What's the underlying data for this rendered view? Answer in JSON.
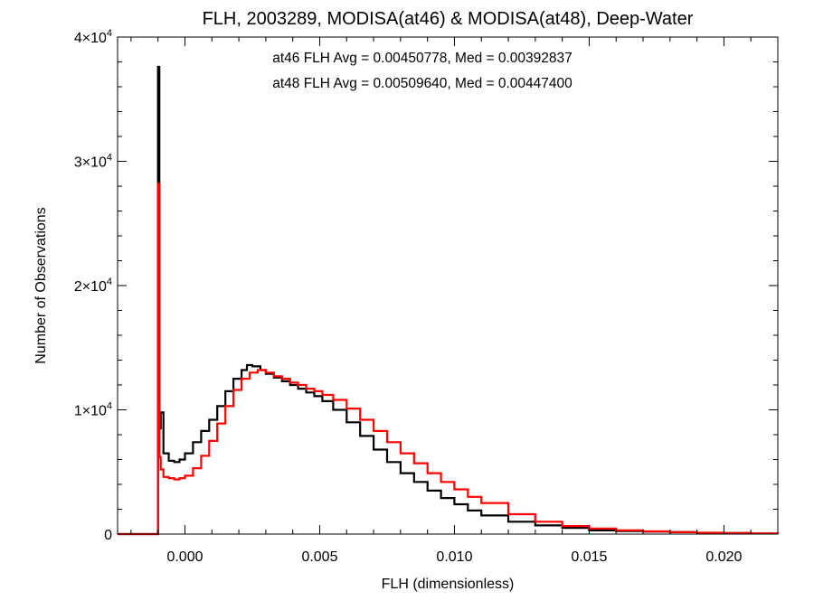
{
  "colors": {
    "series_at46": "#000000",
    "series_at48": "#ff0000"
  },
  "chart_data": {
    "type": "line",
    "title": "FLH, 2003289, MODISA(at46) & MODISA(at48), Deep-Water",
    "xlabel": "FLH (dimensionless)",
    "ylabel": "Number of Observations",
    "xlim": [
      -0.0025,
      0.022
    ],
    "ylim": [
      0,
      40000
    ],
    "x_ticks": [
      {
        "value": 0.0,
        "label": "0.000"
      },
      {
        "value": 0.005,
        "label": "0.005"
      },
      {
        "value": 0.01,
        "label": "0.010"
      },
      {
        "value": 0.015,
        "label": "0.015"
      },
      {
        "value": 0.02,
        "label": "0.020"
      }
    ],
    "y_ticks": [
      {
        "value": 0,
        "mantissa": "0",
        "exponent": ""
      },
      {
        "value": 10000,
        "mantissa": "1×10",
        "exponent": "4"
      },
      {
        "value": 20000,
        "mantissa": "2×10",
        "exponent": "4"
      },
      {
        "value": 30000,
        "mantissa": "3×10",
        "exponent": "4"
      },
      {
        "value": 40000,
        "mantissa": "4×10",
        "exponent": "4"
      }
    ],
    "annotations": [
      "at46 FLH Avg = 0.00450778, Med = 0.00392837",
      "at48 FLH Avg = 0.00509640, Med = 0.00447400"
    ],
    "series": [
      {
        "color": "#000000",
        "x": [
          -0.0025,
          -0.001,
          -0.00095,
          -0.0009,
          -0.0008,
          -0.0006,
          -0.0004,
          -0.0002,
          0.0,
          0.0003,
          0.0006,
          0.0009,
          0.0012,
          0.0015,
          0.0018,
          0.0021,
          0.0023,
          0.0025,
          0.0028,
          0.003,
          0.0033,
          0.0036,
          0.0039,
          0.0042,
          0.0045,
          0.0048,
          0.0051,
          0.0055,
          0.006,
          0.0065,
          0.007,
          0.0075,
          0.008,
          0.0085,
          0.009,
          0.0095,
          0.01,
          0.0105,
          0.011,
          0.012,
          0.013,
          0.014,
          0.015,
          0.016,
          0.017,
          0.018,
          0.019,
          0.02,
          0.021,
          0.022
        ],
        "y": [
          0,
          37600,
          8500,
          9800,
          6500,
          5900,
          5800,
          6000,
          6500,
          7400,
          8300,
          9200,
          10300,
          11500,
          12500,
          13200,
          13600,
          13500,
          13200,
          12900,
          12600,
          12300,
          12000,
          11700,
          11400,
          11100,
          10700,
          10000,
          9000,
          7900,
          6800,
          5800,
          4900,
          4200,
          3500,
          2900,
          2400,
          1900,
          1500,
          1000,
          700,
          500,
          300,
          250,
          200,
          150,
          100,
          80,
          50,
          30
        ]
      },
      {
        "color": "#ff0000",
        "x": [
          -0.0025,
          -0.001,
          -0.00095,
          -0.0009,
          -0.0008,
          -0.0006,
          -0.0004,
          -0.0002,
          0.0,
          0.0003,
          0.0006,
          0.0009,
          0.0012,
          0.0015,
          0.0018,
          0.0021,
          0.0024,
          0.0027,
          0.003,
          0.0033,
          0.0036,
          0.0039,
          0.0042,
          0.0045,
          0.0048,
          0.0051,
          0.0055,
          0.006,
          0.0065,
          0.007,
          0.0075,
          0.008,
          0.0085,
          0.009,
          0.0095,
          0.01,
          0.0105,
          0.011,
          0.012,
          0.013,
          0.014,
          0.015,
          0.016,
          0.017,
          0.018,
          0.019,
          0.02,
          0.021,
          0.022
        ],
        "y": [
          0,
          28200,
          6200,
          5200,
          4600,
          4500,
          4400,
          4500,
          4700,
          5300,
          6300,
          7500,
          8900,
          10300,
          11600,
          12500,
          13000,
          13200,
          13000,
          12700,
          12500,
          12200,
          12000,
          11700,
          11500,
          11200,
          10800,
          10100,
          9200,
          8300,
          7400,
          6500,
          5700,
          4900,
          4200,
          3600,
          3000,
          2500,
          1600,
          1000,
          650,
          450,
          300,
          220,
          160,
          110,
          80,
          50,
          30
        ]
      }
    ]
  }
}
